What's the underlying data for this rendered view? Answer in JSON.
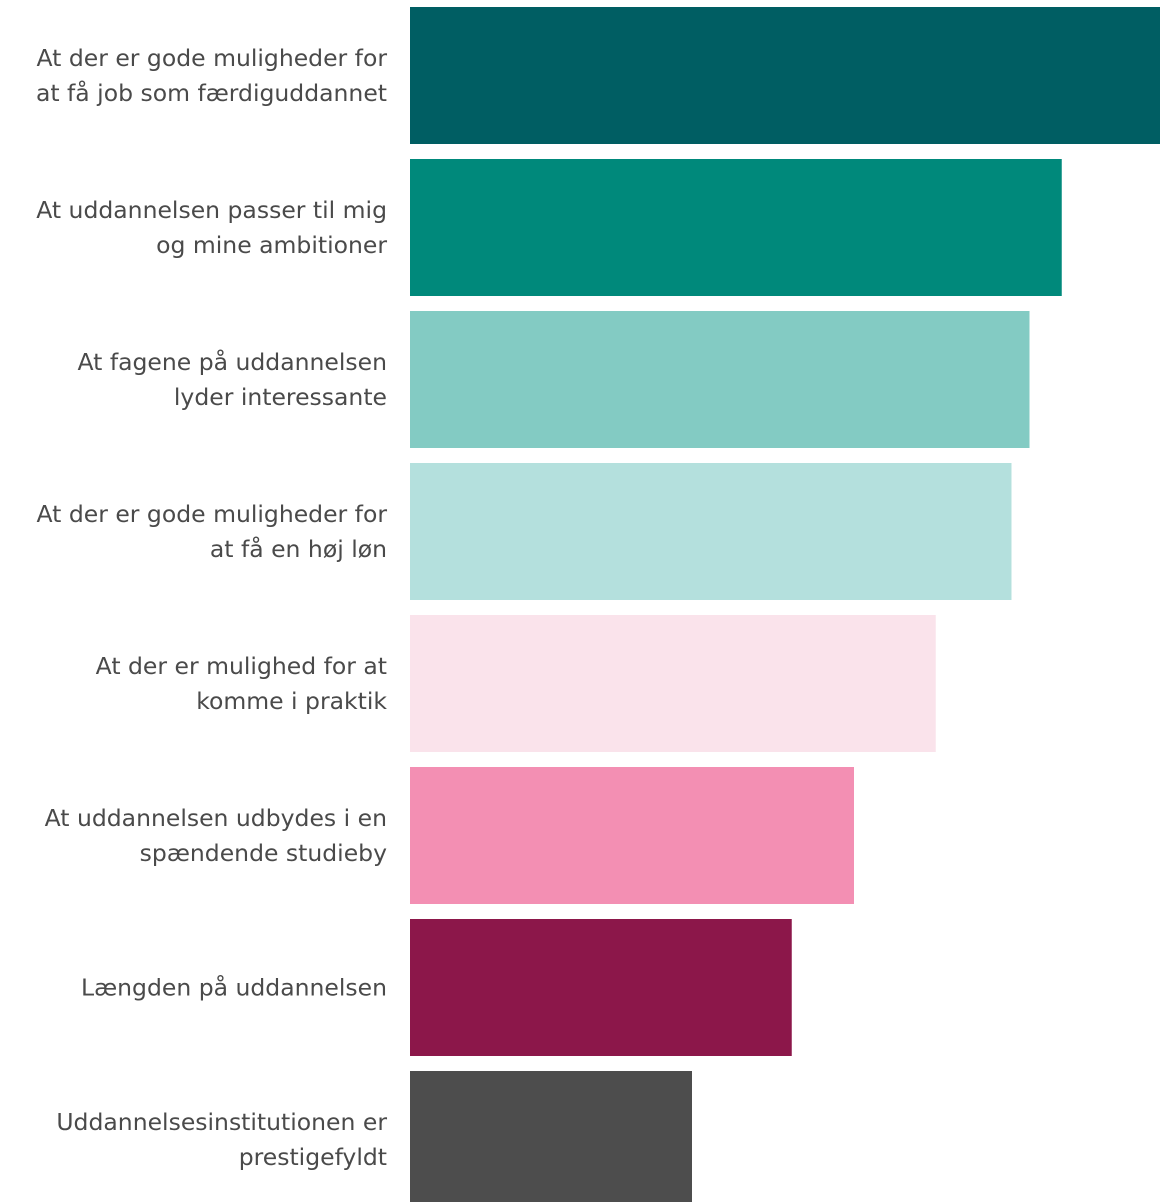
{
  "chart_data": {
    "type": "bar",
    "orientation": "horizontal",
    "title": "",
    "xlabel": "",
    "ylabel": "",
    "grid": false,
    "legend": "none",
    "xlim": [
      0,
      1
    ],
    "categories": [
      {
        "lines": [
          "At der er gode muligheder for",
          "at få job som færdiguddannet"
        ],
        "value": 1.0,
        "color": "#005e63"
      },
      {
        "lines": [
          "At uddannelsen passer til mig",
          "og mine ambitioner"
        ],
        "value": 0.869,
        "color": "#00897b"
      },
      {
        "lines": [
          "At fagene på uddannelsen",
          "lyder interessante"
        ],
        "value": 0.826,
        "color": "#83cbc3"
      },
      {
        "lines": [
          "At der er gode muligheder for",
          "at få en høj løn"
        ],
        "value": 0.802,
        "color": "#b4e0dd"
      },
      {
        "lines": [
          "At der er mulighed for at",
          "komme i praktik"
        ],
        "value": 0.701,
        "color": "#fae3eb"
      },
      {
        "lines": [
          "At uddannelsen udbydes i en",
          "spændende studieby"
        ],
        "value": 0.592,
        "color": "#f38fb3"
      },
      {
        "lines": [
          "Længden på uddannelsen"
        ],
        "value": 0.509,
        "color": "#8c174a"
      },
      {
        "lines": [
          "Uddannelsesinstitutionen er",
          "prestigefyldt"
        ],
        "value": 0.376,
        "color": "#4d4d4d"
      }
    ]
  }
}
